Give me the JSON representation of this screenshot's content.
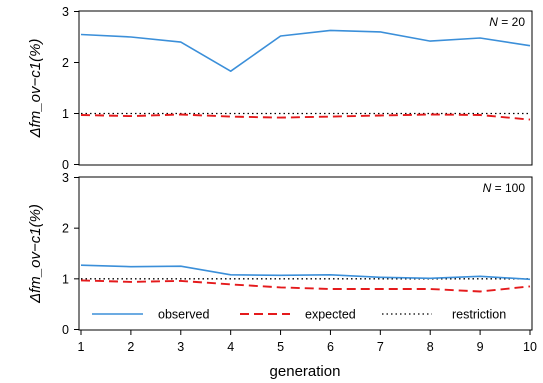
{
  "chart_data": {
    "type": "line",
    "xlabel": "generation",
    "x": [
      1,
      2,
      3,
      4,
      5,
      6,
      7,
      8,
      9,
      10
    ],
    "legend": {
      "position": "bottom",
      "entries": [
        {
          "name": "observed",
          "style": "solid",
          "color": "#3b8fd9"
        },
        {
          "name": "expected",
          "style": "dashed",
          "color": "#e41a1c"
        },
        {
          "name": "restriction",
          "style": "dotted",
          "color": "#000000"
        }
      ]
    },
    "panels": [
      {
        "label_prefix": "N",
        "label_value": "= 20",
        "ylabel": "Δfm_ov−c1(%)",
        "ylim": [
          0,
          3
        ],
        "yticks": [
          0,
          1,
          2,
          3
        ],
        "series": [
          {
            "name": "observed",
            "color": "#3b8fd9",
            "style": "solid",
            "values": [
              2.55,
              2.5,
              2.4,
              1.83,
              2.52,
              2.63,
              2.6,
              2.42,
              2.48,
              2.33
            ]
          },
          {
            "name": "expected",
            "color": "#e41a1c",
            "style": "dashed",
            "values": [
              0.97,
              0.95,
              0.98,
              0.94,
              0.92,
              0.94,
              0.96,
              0.98,
              0.97,
              0.88
            ]
          },
          {
            "name": "restriction",
            "color": "#000000",
            "style": "dotted",
            "values": [
              1,
              1,
              1,
              1,
              1,
              1,
              1,
              1,
              1,
              1
            ]
          }
        ]
      },
      {
        "label_prefix": "N",
        "label_value": "= 100",
        "ylabel": "Δfm_ov−c1(%)",
        "ylim": [
          0,
          3
        ],
        "yticks": [
          0,
          1,
          2,
          3
        ],
        "series": [
          {
            "name": "observed",
            "color": "#3b8fd9",
            "style": "solid",
            "values": [
              1.27,
              1.24,
              1.25,
              1.08,
              1.07,
              1.08,
              1.03,
              1.01,
              1.05,
              0.99
            ]
          },
          {
            "name": "expected",
            "color": "#e41a1c",
            "style": "dashed",
            "values": [
              0.97,
              0.94,
              0.96,
              0.89,
              0.83,
              0.8,
              0.8,
              0.8,
              0.75,
              0.85
            ]
          },
          {
            "name": "restriction",
            "color": "#000000",
            "style": "dotted",
            "values": [
              1,
              1,
              1,
              1,
              1,
              1,
              1,
              1,
              1,
              1
            ]
          }
        ]
      }
    ]
  }
}
